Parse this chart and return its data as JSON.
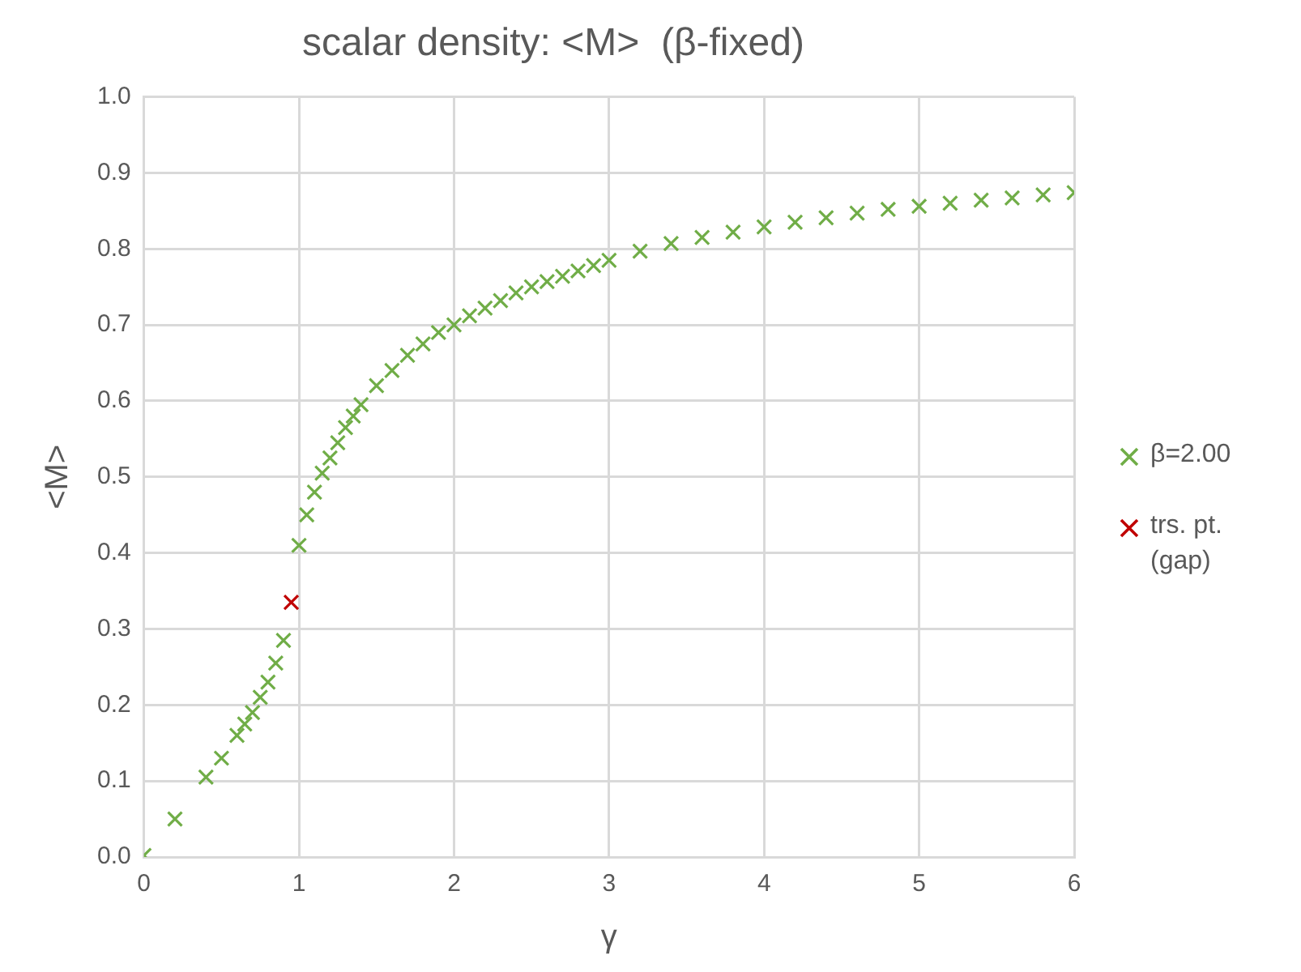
{
  "chart_data": {
    "type": "scatter",
    "title": "scalar density: <M>  (β-fixed)",
    "xlabel": "γ",
    "ylabel": "<M>",
    "xlim": [
      0,
      6
    ],
    "xticks": [
      0,
      1,
      2,
      3,
      4,
      5,
      6
    ],
    "ylim": [
      0,
      1
    ],
    "yticks": [
      {
        "value": 0,
        "label": "0.0"
      },
      {
        "value": 0.1,
        "label": "0.1"
      },
      {
        "value": 0.2,
        "label": "0.2"
      },
      {
        "value": 0.3,
        "label": "0.3"
      },
      {
        "value": 0.4,
        "label": "0.4"
      },
      {
        "value": 0.5,
        "label": "0.5"
      },
      {
        "value": 0.6,
        "label": "0.6"
      },
      {
        "value": 0.7,
        "label": "0.7"
      },
      {
        "value": 0.8,
        "label": "0.8"
      },
      {
        "value": 0.9,
        "label": "0.9"
      },
      {
        "value": 1,
        "label": "1.0"
      }
    ],
    "grid": true,
    "legend": "right",
    "marker": "cross",
    "series": [
      {
        "name": "β=2.00",
        "color": "#70ad47",
        "x": [
          0,
          0.2,
          0.4,
          0.5,
          0.6,
          0.65,
          0.7,
          0.75,
          0.8,
          0.85,
          0.9,
          1.0,
          1.05,
          1.1,
          1.15,
          1.2,
          1.25,
          1.3,
          1.35,
          1.4,
          1.5,
          1.6,
          1.7,
          1.8,
          1.9,
          2.0,
          2.1,
          2.2,
          2.3,
          2.4,
          2.5,
          2.6,
          2.7,
          2.8,
          2.9,
          3.0,
          3.2,
          3.4,
          3.6,
          3.8,
          4.0,
          4.2,
          4.4,
          4.6,
          4.8,
          5.0,
          5.2,
          5.4,
          5.6,
          5.8,
          6.0
        ],
        "values": [
          0.002,
          0.05,
          0.105,
          0.13,
          0.16,
          0.175,
          0.19,
          0.21,
          0.23,
          0.255,
          0.285,
          0.41,
          0.45,
          0.48,
          0.505,
          0.525,
          0.545,
          0.565,
          0.58,
          0.595,
          0.62,
          0.64,
          0.66,
          0.675,
          0.69,
          0.7,
          0.712,
          0.722,
          0.732,
          0.742,
          0.75,
          0.757,
          0.764,
          0.771,
          0.778,
          0.785,
          0.797,
          0.807,
          0.815,
          0.822,
          0.829,
          0.835,
          0.841,
          0.847,
          0.852,
          0.856,
          0.86,
          0.864,
          0.867,
          0.871,
          0.874
        ]
      },
      {
        "name": "trs. pt. (gap)",
        "color": "#c00000",
        "x": [
          0.95
        ],
        "values": [
          0.335
        ]
      }
    ]
  }
}
